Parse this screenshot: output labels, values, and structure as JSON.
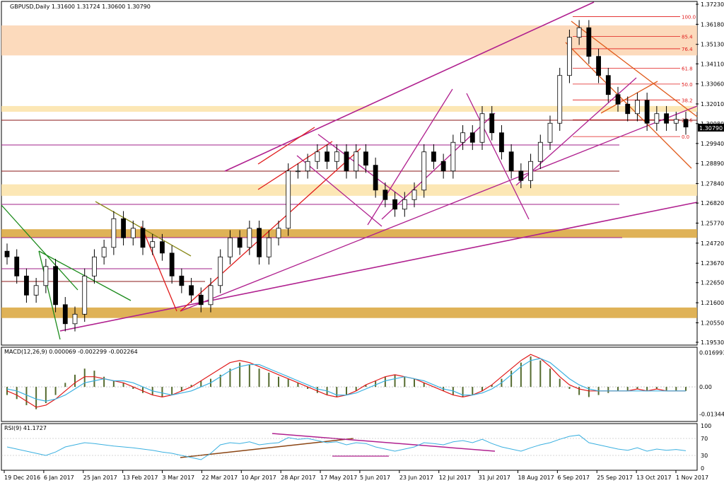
{
  "chart_data": {
    "type": "candlestick",
    "main": {
      "header": "GBPUSD,Daily  1.31600 1.31724 1.30600 1.30790",
      "current_price": "1.30790",
      "y_ticks": [
        "1.37230",
        "1.36180",
        "1.35130",
        "1.34110",
        "1.33060",
        "1.32010",
        "1.30980",
        "1.29940",
        "1.28890",
        "1.27840",
        "1.26820",
        "1.25770",
        "1.24720",
        "1.23670",
        "1.22650",
        "1.21600",
        "1.20550",
        "1.19530"
      ],
      "ylim": [
        1.1953,
        1.3723
      ],
      "fib_levels": [
        {
          "label": "100.0",
          "value": 1.3658
        },
        {
          "label": "85.4",
          "value": 1.3555
        },
        {
          "label": "76.4",
          "value": 1.349
        },
        {
          "label": "61.8",
          "value": 1.3388
        },
        {
          "label": "50.0",
          "value": 1.3305
        },
        {
          "label": "38.2",
          "value": 1.3222
        },
        {
          "label": "23.6",
          "value": 1.3118
        },
        {
          "label": "0.0",
          "value": 1.303
        }
      ],
      "zones": [
        {
          "from": 1.3512,
          "to": 1.3612,
          "color": "#fcd3b0"
        },
        {
          "from": 1.3455,
          "to": 1.3512,
          "color": "#fcd3b0"
        },
        {
          "from": 1.316,
          "to": 1.319,
          "color": "#fbe3a8"
        },
        {
          "from": 1.272,
          "to": 1.278,
          "color": "#fbe3a8"
        },
        {
          "from": 1.25,
          "to": 1.2545,
          "color": "#d9a43a"
        },
        {
          "from": 1.208,
          "to": 1.2135,
          "color": "#d9a43a"
        }
      ],
      "close_path": [
        1.24,
        1.23,
        1.22,
        1.225,
        1.235,
        1.215,
        1.205,
        1.21,
        1.23,
        1.24,
        1.245,
        1.26,
        1.25,
        1.255,
        1.245,
        1.248,
        1.242,
        1.23,
        1.225,
        1.22,
        1.215,
        1.225,
        1.24,
        1.25,
        1.245,
        1.255,
        1.24,
        1.25,
        1.255,
        1.285,
        1.285,
        1.29,
        1.295,
        1.29,
        1.295,
        1.285,
        1.295,
        1.288,
        1.275,
        1.27,
        1.265,
        1.27,
        1.275,
        1.295,
        1.29,
        1.285,
        1.3,
        1.305,
        1.3,
        1.315,
        1.305,
        1.295,
        1.285,
        1.28,
        1.29,
        1.3,
        1.31,
        1.335,
        1.355,
        1.36,
        1.345,
        1.335,
        1.325,
        1.32,
        1.315,
        1.322,
        1.31,
        1.315,
        1.31,
        1.312,
        1.308
      ]
    },
    "macd": {
      "header": "MACD(12,26,9) 0.000069 -0.002299 -0.002264",
      "y_ticks": [
        "0.016993",
        "0.00",
        "-0.013446"
      ],
      "ylim": [
        -0.016,
        0.0185
      ],
      "histogram": [
        -0.004,
        -0.006,
        -0.009,
        -0.011,
        -0.008,
        -0.004,
        0.002,
        0.006,
        0.009,
        0.008,
        0.005,
        0.003,
        0.002,
        -0.001,
        -0.003,
        -0.004,
        -0.005,
        -0.004,
        -0.002,
        0.001,
        0.003,
        0.004,
        0.006,
        0.009,
        0.012,
        0.011,
        0.009,
        0.007,
        0.005,
        0.004,
        0.002,
        -0.001,
        -0.003,
        -0.004,
        -0.005,
        -0.004,
        -0.002,
        0.001,
        0.003,
        0.005,
        0.006,
        0.005,
        0.004,
        0.002,
        0.0,
        -0.002,
        -0.004,
        -0.005,
        -0.004,
        -0.002,
        0.001,
        0.004,
        0.008,
        0.012,
        0.015,
        0.013,
        0.009,
        0.004,
        -0.001,
        -0.004,
        -0.005,
        -0.004,
        -0.003,
        -0.002,
        -0.002,
        -0.001,
        -0.002,
        -0.001,
        -0.002,
        -0.002,
        -0.002
      ],
      "macd_line": [
        -0.002,
        -0.004,
        -0.007,
        -0.01,
        -0.009,
        -0.006,
        -0.002,
        0.002,
        0.005,
        0.005,
        0.004,
        0.003,
        0.002,
        0.0,
        -0.002,
        -0.004,
        -0.005,
        -0.004,
        -0.002,
        0.0,
        0.003,
        0.006,
        0.009,
        0.012,
        0.013,
        0.012,
        0.01,
        0.008,
        0.006,
        0.004,
        0.002,
        0.0,
        -0.002,
        -0.004,
        -0.005,
        -0.004,
        -0.002,
        0.001,
        0.003,
        0.005,
        0.006,
        0.005,
        0.004,
        0.002,
        0.0,
        -0.002,
        -0.004,
        -0.005,
        -0.004,
        -0.002,
        0.001,
        0.005,
        0.009,
        0.013,
        0.016,
        0.014,
        0.01,
        0.005,
        0.001,
        -0.001,
        -0.002,
        -0.002,
        -0.002,
        -0.002,
        -0.002,
        -0.001,
        -0.002,
        -0.001,
        -0.002,
        -0.002,
        -0.002
      ],
      "signal_line": [
        -0.001,
        -0.002,
        -0.004,
        -0.006,
        -0.007,
        -0.006,
        -0.004,
        -0.001,
        0.002,
        0.003,
        0.004,
        0.003,
        0.003,
        0.002,
        0.0,
        -0.002,
        -0.003,
        -0.004,
        -0.003,
        -0.002,
        0.0,
        0.002,
        0.005,
        0.008,
        0.01,
        0.011,
        0.011,
        0.009,
        0.007,
        0.005,
        0.003,
        0.001,
        -0.001,
        -0.002,
        -0.004,
        -0.004,
        -0.003,
        -0.001,
        0.001,
        0.003,
        0.004,
        0.005,
        0.004,
        0.003,
        0.001,
        -0.001,
        -0.002,
        -0.004,
        -0.004,
        -0.003,
        -0.001,
        0.002,
        0.006,
        0.01,
        0.013,
        0.014,
        0.012,
        0.008,
        0.004,
        0.001,
        -0.001,
        -0.002,
        -0.002,
        -0.002,
        -0.002,
        -0.002,
        -0.002,
        -0.002,
        -0.002,
        -0.002,
        -0.002
      ]
    },
    "rsi": {
      "header": "RSI(9) 41.1727",
      "y_ticks": [
        "100",
        "70",
        "30",
        "0"
      ],
      "ylim": [
        0,
        100
      ],
      "values": [
        50,
        45,
        40,
        35,
        30,
        38,
        50,
        55,
        60,
        58,
        55,
        52,
        50,
        48,
        45,
        42,
        38,
        35,
        30,
        25,
        20,
        35,
        55,
        60,
        58,
        62,
        55,
        58,
        60,
        72,
        68,
        70,
        65,
        60,
        62,
        55,
        60,
        58,
        50,
        45,
        40,
        45,
        50,
        60,
        58,
        55,
        62,
        65,
        60,
        68,
        58,
        50,
        45,
        40,
        48,
        55,
        60,
        68,
        75,
        78,
        60,
        55,
        50,
        45,
        42,
        48,
        40,
        45,
        42,
        44,
        41
      ]
    },
    "x_ticks": [
      "19 Dec 2016",
      "6 Jan 2017",
      "25 Jan 2017",
      "13 Feb 2017",
      "3 Mar 2017",
      "22 Mar 2017",
      "10 Apr 2017",
      "28 Apr 2017",
      "17 May 2017",
      "5 Jun 2017",
      "23 Jun 2017",
      "12 Jul 2017",
      "31 Jul 2017",
      "18 Aug 2017",
      "6 Sep 2017",
      "25 Sep 2017",
      "13 Oct 2017",
      "1 Nov 2017"
    ]
  }
}
